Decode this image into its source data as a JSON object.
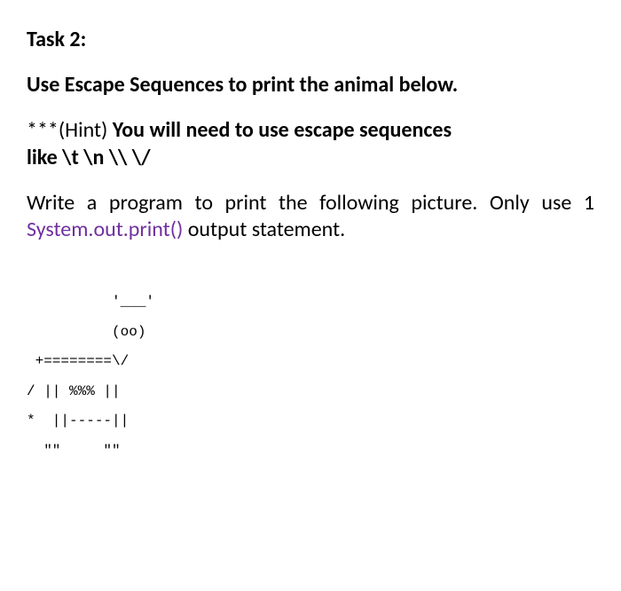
{
  "task": {
    "heading": "Task 2:",
    "instruction": "Use Escape Sequences to print the animal below.",
    "hint_stars": "***",
    "hint_label": "(Hint)  ",
    "hint_text": "You will need to use escape sequences",
    "hint_line2": "like \\t \\n \\\\ \\/",
    "body_pre": "Write a program to print the following picture. Only use 1 ",
    "method": "System.out.print()",
    "body_post": " output statement.",
    "ascii": "          '___'\n          (oo)\n +========\\/\n/ || %%% ||\n*  ||-----||\n  \"\"     \"\""
  },
  "styles": {
    "text_color": "#000000",
    "method_color": "#7030a0",
    "background_color": "#ffffff",
    "body_fontsize": 24,
    "ascii_fontsize": 16,
    "ascii_font": "Courier New"
  }
}
